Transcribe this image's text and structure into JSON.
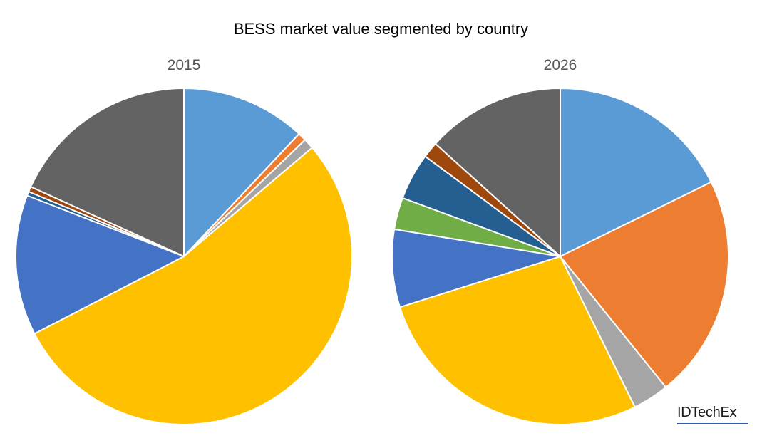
{
  "chart_data": {
    "type": "pie",
    "title": "BESS market value segmented by country",
    "colors": [
      "#5b9bd5",
      "#ed7d31",
      "#a5a5a5",
      "#ffc000",
      "#4472c4",
      "#70ad47",
      "#255e91",
      "#9e480e",
      "#636363"
    ],
    "pies": [
      {
        "subtitle": "2015",
        "values": [
          12.0,
          0.8,
          1.0,
          53.6,
          13.5,
          0.0,
          0.4,
          0.5,
          18.2
        ]
      },
      {
        "subtitle": "2026",
        "values": [
          17.3,
          21.0,
          3.4,
          26.8,
          7.3,
          3.0,
          4.4,
          1.5,
          13.0
        ]
      }
    ]
  },
  "logo": "IDTechEx"
}
